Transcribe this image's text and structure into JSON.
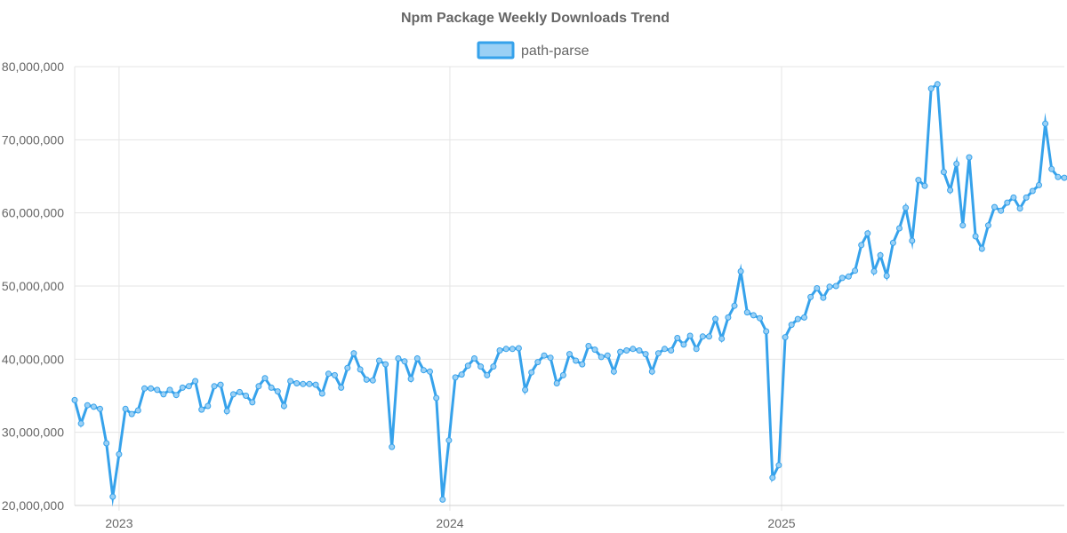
{
  "chart_data": {
    "type": "line",
    "title": "Npm Package Weekly Downloads Trend",
    "legend_position": "top-center",
    "grid": true,
    "ylim": [
      20000000,
      80000000
    ],
    "yticks": [
      "20,000,000",
      "30,000,000",
      "40,000,000",
      "50,000,000",
      "60,000,000",
      "70,000,000",
      "80,000,000"
    ],
    "ytick_values": [
      20000000,
      30000000,
      40000000,
      50000000,
      60000000,
      70000000,
      80000000
    ],
    "xlim": [
      "2022-11-13",
      "2025-11-09"
    ],
    "xticks": [
      {
        "label": "2023",
        "date": "2023-01-01"
      },
      {
        "label": "2024",
        "date": "2024-01-01"
      },
      {
        "label": "2025",
        "date": "2025-01-01"
      }
    ],
    "series": [
      {
        "name": "path-parse",
        "color": "#36a2eb",
        "fill": "#9ad0f5",
        "x_start": "2022-11-13",
        "x_interval_days": 7,
        "values": [
          34400000,
          31200000,
          33700000,
          33500000,
          33200000,
          28500000,
          21200000,
          27000000,
          33200000,
          32500000,
          33000000,
          36000000,
          36000000,
          35800000,
          35200000,
          35800000,
          35100000,
          36100000,
          36300000,
          37000000,
          33100000,
          33600000,
          36300000,
          36500000,
          32900000,
          35200000,
          35500000,
          35000000,
          34100000,
          36300000,
          37400000,
          36100000,
          35600000,
          33600000,
          37000000,
          36700000,
          36600000,
          36600000,
          36500000,
          35300000,
          38000000,
          37800000,
          36100000,
          38800000,
          40800000,
          38600000,
          37200000,
          37100000,
          39800000,
          39300000,
          28000000,
          40100000,
          39700000,
          37300000,
          40100000,
          38500000,
          38300000,
          34700000,
          20800000,
          28900000,
          37500000,
          37900000,
          39100000,
          40100000,
          39000000,
          37800000,
          39000000,
          41200000,
          41400000,
          41400000,
          41500000,
          35800000,
          38200000,
          39600000,
          40500000,
          40200000,
          36700000,
          37800000,
          40700000,
          39800000,
          39300000,
          41800000,
          41300000,
          40300000,
          40500000,
          38300000,
          41000000,
          41200000,
          41400000,
          41200000,
          40700000,
          38300000,
          40800000,
          41400000,
          41200000,
          42900000,
          42000000,
          43200000,
          41400000,
          43100000,
          43100000,
          45500000,
          42800000,
          45700000,
          47300000,
          52000000,
          46400000,
          46000000,
          45600000,
          43800000,
          23800000,
          25500000,
          43000000,
          44700000,
          45500000,
          45700000,
          48500000,
          49700000,
          48400000,
          49900000,
          50000000,
          51100000,
          51300000,
          52100000,
          55600000,
          57200000,
          52000000,
          54200000,
          51400000,
          55900000,
          57900000,
          60700000,
          56200000,
          64500000,
          63700000,
          77000000,
          77600000,
          65600000,
          63100000,
          66700000,
          58300000,
          67600000,
          56800000,
          55100000,
          58300000,
          60800000,
          60300000,
          61400000,
          62100000,
          60600000,
          62100000,
          63000000,
          63800000,
          72200000,
          66000000,
          64900000,
          64800000
        ]
      }
    ]
  }
}
